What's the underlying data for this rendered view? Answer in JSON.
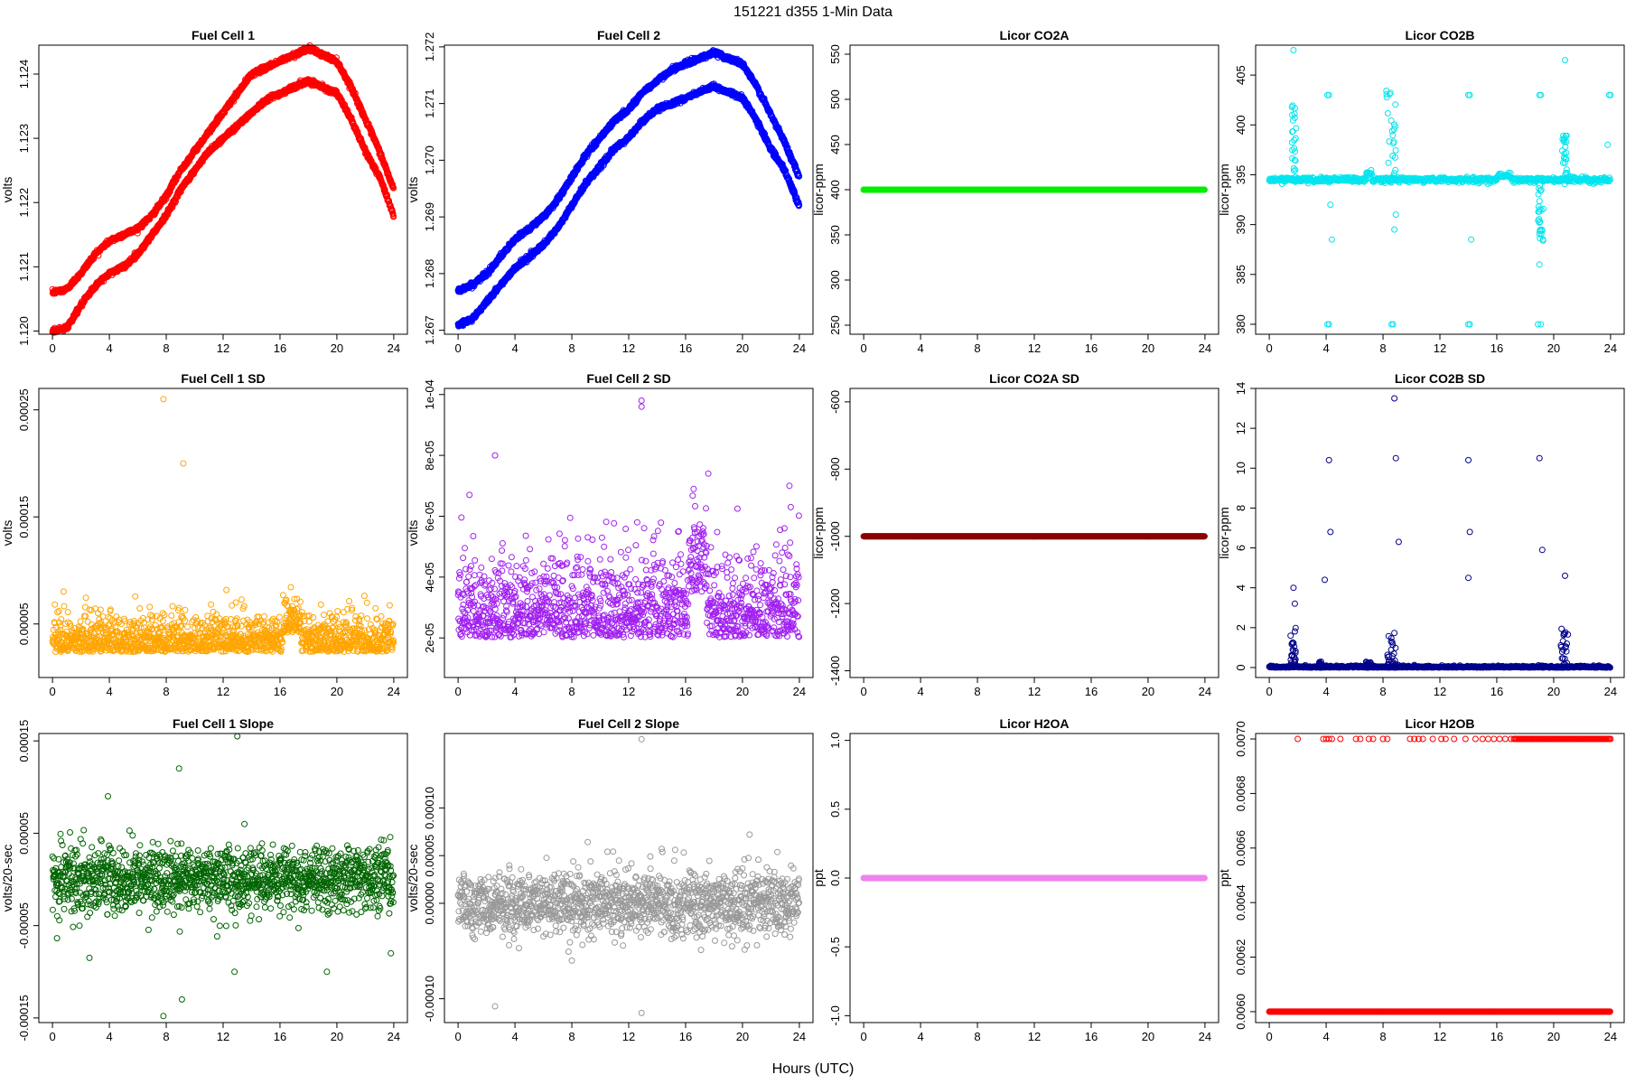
{
  "title": "151221    d355    1-Min Data",
  "xlabel": "Hours (UTC)",
  "chart_data": [
    {
      "type": "scatter",
      "title": "Fuel Cell 1",
      "ylabel": "volts",
      "color": "#ff0000",
      "xlim": [
        0,
        24
      ],
      "ylim": [
        1.11995,
        1.12445
      ],
      "yticks": [
        "1.120",
        "1.121",
        "1.122",
        "1.123",
        "1.124"
      ],
      "ytick_values": [
        1.12,
        1.121,
        1.122,
        1.123,
        1.124
      ],
      "xticks": [
        0,
        4,
        8,
        12,
        16,
        20,
        24
      ],
      "pattern": "fc_two_tracks",
      "series": [
        {
          "x": [
            0,
            1,
            2,
            3,
            4,
            5,
            6,
            7,
            8,
            9,
            10,
            11,
            12,
            13,
            14,
            15,
            16,
            17,
            18,
            19,
            20,
            21,
            22,
            23,
            24
          ],
          "y": [
            1.1206,
            1.12065,
            1.1209,
            1.1212,
            1.1214,
            1.1215,
            1.1216,
            1.1218,
            1.1221,
            1.1225,
            1.1228,
            1.1231,
            1.1234,
            1.1237,
            1.124,
            1.1241,
            1.1242,
            1.1243,
            1.1244,
            1.1243,
            1.1242,
            1.1238,
            1.1233,
            1.1228,
            1.1222
          ]
        },
        {
          "x": [
            0,
            1,
            2,
            3,
            4,
            5,
            6,
            7,
            8,
            9,
            10,
            11,
            12,
            13,
            14,
            15,
            16,
            17,
            18,
            19,
            20,
            21,
            22,
            23,
            24
          ],
          "y": [
            1.12,
            1.12005,
            1.1204,
            1.1207,
            1.1209,
            1.121,
            1.1212,
            1.1215,
            1.1218,
            1.1222,
            1.1225,
            1.1228,
            1.123,
            1.1232,
            1.1234,
            1.1236,
            1.1237,
            1.1238,
            1.1239,
            1.1238,
            1.1237,
            1.1233,
            1.1228,
            1.1224,
            1.1218
          ]
        }
      ]
    },
    {
      "type": "scatter",
      "title": "Fuel Cell 2",
      "ylabel": "volts",
      "color": "#0000ff",
      "xlim": [
        0,
        24
      ],
      "ylim": [
        1.26693,
        1.27203
      ],
      "yticks": [
        "1.267",
        "1.268",
        "1.269",
        "1.270",
        "1.271",
        "1.272"
      ],
      "ytick_values": [
        1.267,
        1.268,
        1.269,
        1.27,
        1.271,
        1.272
      ],
      "xticks": [
        0,
        4,
        8,
        12,
        16,
        20,
        24
      ],
      "pattern": "fc_two_tracks",
      "series": [
        {
          "x": [
            0,
            1,
            2,
            3,
            4,
            5,
            6,
            7,
            8,
            9,
            10,
            11,
            12,
            13,
            14,
            15,
            16,
            17,
            18,
            19,
            20,
            21,
            22,
            23,
            24
          ],
          "y": [
            1.2677,
            1.2678,
            1.268,
            1.2683,
            1.2686,
            1.2688,
            1.269,
            1.2693,
            1.2697,
            1.2701,
            1.2704,
            1.2707,
            1.2709,
            1.2712,
            1.2714,
            1.2716,
            1.2717,
            1.2718,
            1.2719,
            1.2718,
            1.2717,
            1.2713,
            1.2708,
            1.2703,
            1.2697
          ]
        },
        {
          "x": [
            0,
            1,
            2,
            3,
            4,
            5,
            6,
            7,
            8,
            9,
            10,
            11,
            12,
            13,
            14,
            15,
            16,
            17,
            18,
            19,
            20,
            21,
            22,
            23,
            24
          ],
          "y": [
            1.2671,
            1.2672,
            1.2675,
            1.2678,
            1.2681,
            1.2683,
            1.2685,
            1.2688,
            1.2692,
            1.2696,
            1.2699,
            1.2702,
            1.2704,
            1.2707,
            1.2709,
            1.271,
            1.2711,
            1.2712,
            1.2713,
            1.2712,
            1.2711,
            1.2707,
            1.2702,
            1.2698,
            1.2692
          ]
        }
      ]
    },
    {
      "type": "scatter",
      "title": "Licor CO2A",
      "ylabel": "licor-ppm",
      "color": "#00ee00",
      "xlim": [
        0,
        24
      ],
      "ylim": [
        240,
        560
      ],
      "yticks": [
        "250",
        "300",
        "350",
        "400",
        "450",
        "500",
        "550"
      ],
      "ytick_values": [
        250,
        300,
        350,
        400,
        450,
        500,
        550
      ],
      "xticks": [
        0,
        4,
        8,
        12,
        16,
        20,
        24
      ],
      "pattern": "constant",
      "constant_value": 400
    },
    {
      "type": "scatter",
      "title": "Licor CO2B",
      "ylabel": "licor-ppm",
      "color": "#00e5ee",
      "xlim": [
        0,
        24
      ],
      "ylim": [
        379,
        408
      ],
      "yticks": [
        "380",
        "385",
        "390",
        "395",
        "400",
        "405"
      ],
      "ytick_values": [
        380,
        385,
        390,
        395,
        400,
        405
      ],
      "xticks": [
        0,
        4,
        8,
        12,
        16,
        20,
        24
      ],
      "pattern": "co2b",
      "baseline": 394.5
    },
    {
      "type": "scatter",
      "title": "Fuel Cell 1 SD",
      "ylabel": "volts",
      "color": "#ffa500",
      "xlim": [
        0,
        24
      ],
      "ylim": [
        0.0,
        0.00027
      ],
      "yticks": [
        "0.00005",
        "0.00015",
        "0.00025"
      ],
      "ytick_values": [
        5e-05,
        0.00015,
        0.00025
      ],
      "xticks": [
        0,
        4,
        8,
        12,
        16,
        20,
        24
      ],
      "pattern": "sd_noise",
      "noise_mean": 3e-05,
      "noise_spread": 2e-05,
      "outliers": {
        "x": [
          7.8,
          9.2,
          8.9,
          12.9,
          3.2,
          16.8
        ],
        "y": [
          0.00026,
          0.0002,
          6.5e-05,
          7e-05,
          6e-05,
          6e-05
        ]
      }
    },
    {
      "type": "scatter",
      "title": "Fuel Cell 2 SD",
      "ylabel": "volts",
      "color": "#a020f0",
      "xlim": [
        0,
        24
      ],
      "ylim": [
        7e-06,
        0.000102
      ],
      "yticks": [
        "2e-05",
        "4e-05",
        "6e-05",
        "8e-05",
        "1e-04"
      ],
      "ytick_values": [
        2e-05,
        4e-05,
        6e-05,
        8e-05,
        0.0001
      ],
      "xticks": [
        0,
        4,
        8,
        12,
        16,
        20,
        24
      ],
      "pattern": "sd_noise",
      "noise_mean": 2.5e-05,
      "noise_spread": 1.6e-05,
      "outliers": {
        "x": [
          12.9,
          12.9,
          2.6,
          0.8,
          12.6,
          17.6,
          23.3,
          23.4
        ],
        "y": [
          9.8e-05,
          9.6e-05,
          8e-05,
          6.7e-05,
          5.8e-05,
          7.4e-05,
          7e-05,
          6.3e-05
        ]
      }
    },
    {
      "type": "scatter",
      "title": "Licor CO2A SD",
      "ylabel": "licor-ppm",
      "color": "#8b0000",
      "xlim": [
        0,
        24
      ],
      "ylim": [
        -1420,
        -560
      ],
      "yticks": [
        "-1400",
        "-1200",
        "-1000",
        "-800",
        "-600"
      ],
      "ytick_values": [
        -1400,
        -1200,
        -1000,
        -800,
        -600
      ],
      "xticks": [
        0,
        4,
        8,
        12,
        16,
        20,
        24
      ],
      "pattern": "constant",
      "constant_value": -1000
    },
    {
      "type": "scatter",
      "title": "Licor CO2B SD",
      "ylabel": "licor-ppm",
      "color": "#00008b",
      "xlim": [
        0,
        24
      ],
      "ylim": [
        -0.5,
        14
      ],
      "yticks": [
        "0",
        "2",
        "4",
        "6",
        "8",
        "10",
        "12",
        "14"
      ],
      "ytick_values": [
        0,
        2,
        4,
        6,
        8,
        10,
        12,
        14
      ],
      "xticks": [
        0,
        4,
        8,
        12,
        16,
        20,
        24
      ],
      "pattern": "co2bsd",
      "outliers": {
        "x": [
          8.8,
          8.9,
          4.2,
          4.3,
          14.0,
          14.1,
          19.0,
          19.2,
          9.1,
          1.7,
          1.8,
          14.0,
          20.8,
          3.9
        ],
        "y": [
          13.5,
          10.5,
          10.4,
          6.8,
          10.4,
          6.8,
          10.5,
          5.9,
          6.3,
          4.0,
          3.2,
          4.5,
          4.6,
          4.4
        ]
      }
    },
    {
      "type": "scatter",
      "title": "Fuel Cell 1 Slope",
      "ylabel": "volts/20-sec",
      "color": "#006400",
      "xlim": [
        0,
        24
      ],
      "ylim": [
        -0.000155,
        0.000158
      ],
      "yticks": [
        "-0.00015",
        "-0.00005",
        "0.00005",
        "0.00015"
      ],
      "ytick_values": [
        -0.00015,
        -5e-05,
        5e-05,
        0.00015
      ],
      "xticks": [
        0,
        4,
        8,
        12,
        16,
        20,
        24
      ],
      "pattern": "slope_noise",
      "noise_mean": 0.0,
      "noise_spread": 1.8e-05,
      "outliers": {
        "x": [
          13.0,
          8.9,
          3.9,
          7.8,
          9.1,
          2.6,
          12.8,
          13.5,
          19.3,
          23.8
        ],
        "y": [
          0.000155,
          0.00012,
          9e-05,
          -0.000148,
          -0.00013,
          -8.5e-05,
          -0.0001,
          6e-05,
          -0.0001,
          -8e-05
        ]
      }
    },
    {
      "type": "scatter",
      "title": "Fuel Cell 2 Slope",
      "ylabel": "volts/20-sec",
      "color": "#999999",
      "xlim": [
        0,
        24
      ],
      "ylim": [
        -0.000125,
        0.000178
      ],
      "yticks": [
        "-0.00010",
        "0.00000",
        "0.00005",
        "0.00010"
      ],
      "ytick_values": [
        -0.0001,
        0.0,
        5e-05,
        0.0001
      ],
      "xticks": [
        0,
        4,
        8,
        12,
        16,
        20,
        24
      ],
      "pattern": "slope_noise",
      "noise_mean": 0.0,
      "noise_spread": 1.7e-05,
      "outliers": {
        "x": [
          12.9,
          12.9,
          2.6,
          8.0,
          20.5
        ],
        "y": [
          0.000172,
          -0.000115,
          -0.000108,
          -6e-05,
          7.2e-05
        ]
      }
    },
    {
      "type": "scatter",
      "title": "Licor H2OA",
      "ylabel": "ppt",
      "color": "#ee82ee",
      "xlim": [
        0,
        24
      ],
      "ylim": [
        -1.05,
        1.05
      ],
      "yticks": [
        "-1.0",
        "-0.5",
        "0.0",
        "0.5",
        "1.0"
      ],
      "ytick_values": [
        -1.0,
        -0.5,
        0.0,
        0.5,
        1.0
      ],
      "xticks": [
        0,
        4,
        8,
        12,
        16,
        20,
        24
      ],
      "pattern": "constant",
      "constant_value": 0.0
    },
    {
      "type": "scatter",
      "title": "Licor H2OB",
      "ylabel": "ppt",
      "color": "#ff0000",
      "xlim": [
        0,
        24
      ],
      "ylim": [
        0.00596,
        0.00702
      ],
      "yticks": [
        "0.0060",
        "0.0062",
        "0.0064",
        "0.0066",
        "0.0068",
        "0.0070"
      ],
      "ytick_values": [
        0.006,
        0.0062,
        0.0064,
        0.0066,
        0.0068,
        0.007
      ],
      "xticks": [
        0,
        4,
        8,
        12,
        16,
        20,
        24
      ],
      "pattern": "h2ob",
      "low_value": 0.006,
      "high_value": 0.007
    }
  ]
}
